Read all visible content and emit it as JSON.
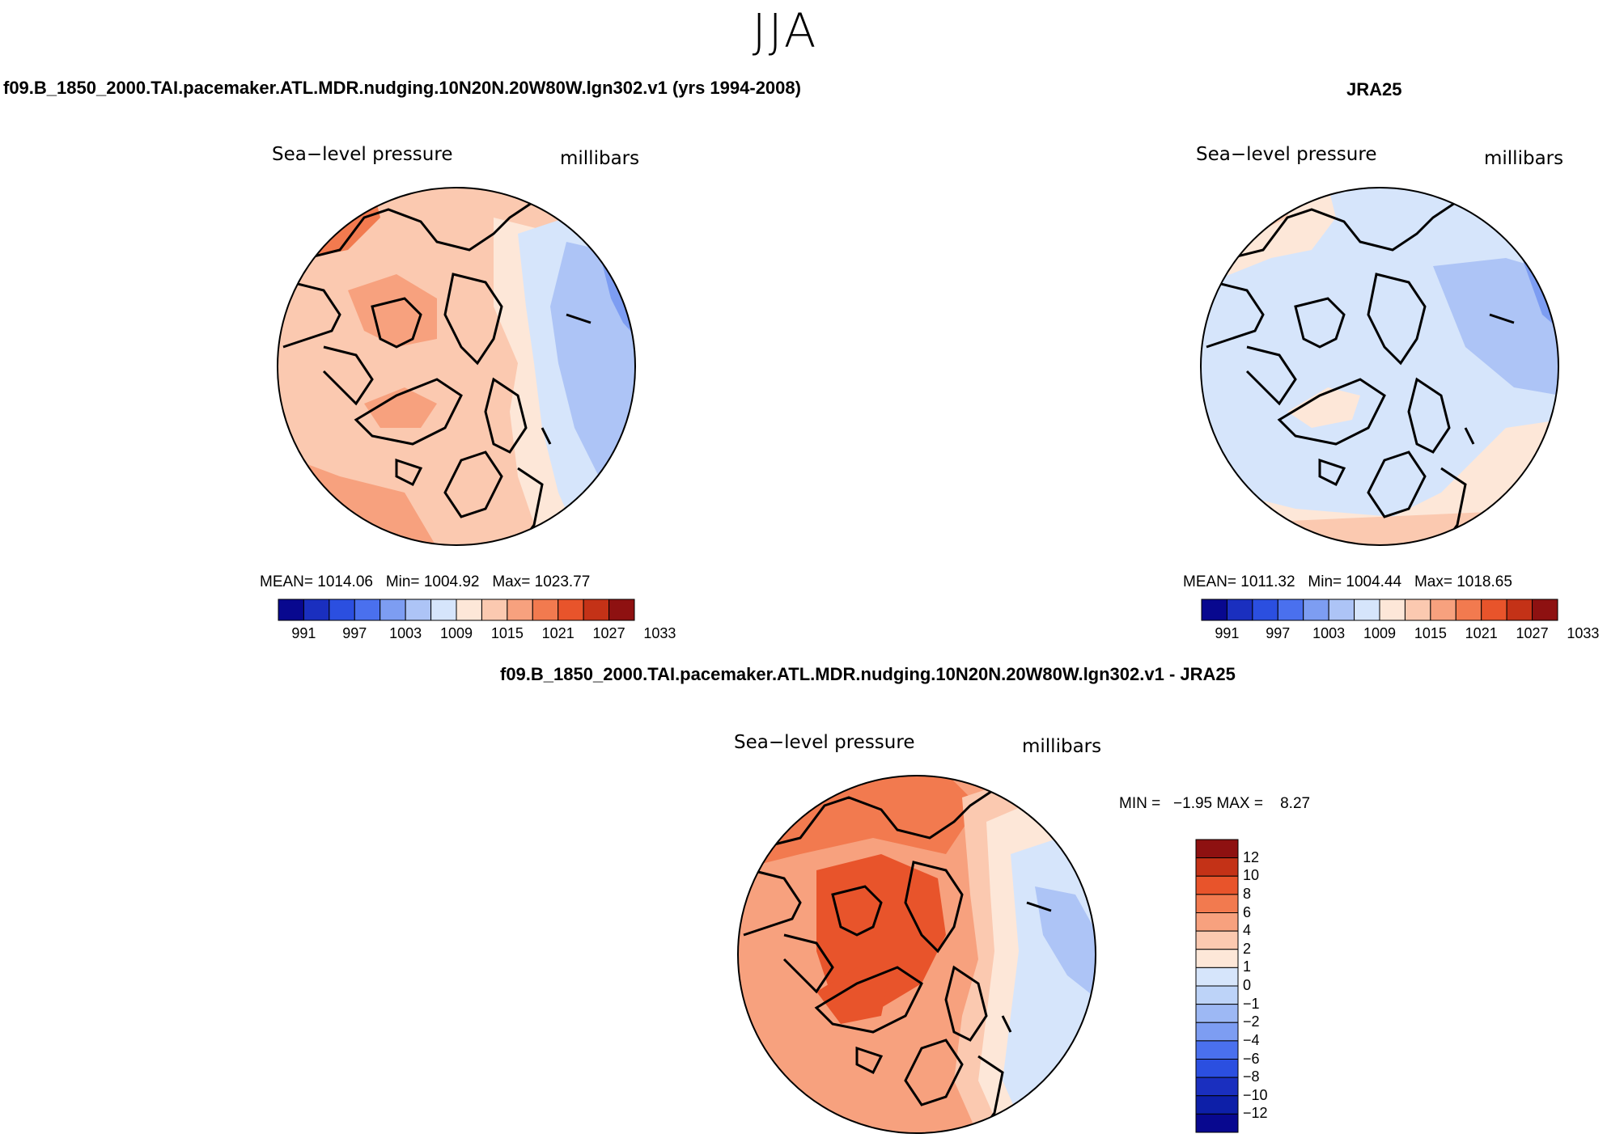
{
  "title": "JJA",
  "panels": {
    "model": {
      "case_title": "f09.B_1850_2000.TAI.pacemaker.ATL.MDR.nudging.10N20N.20W80W.lgn302.v1 (yrs 1994-2008)",
      "variable": "Sea−level pressure",
      "units": "millibars",
      "stats": {
        "mean_label": "MEAN=",
        "mean": "1014.06",
        "min_label": "Min=",
        "min": "1004.92",
        "max_label": "Max=",
        "max": "1023.77"
      },
      "colorbar_labels": [
        "991",
        "997",
        "1003",
        "1009",
        "1015",
        "1021",
        "1027",
        "1033"
      ]
    },
    "obs": {
      "case_title": "JRA25",
      "variable": "Sea−level pressure",
      "units": "millibars",
      "stats": {
        "mean_label": "MEAN=",
        "mean": "1011.32",
        "min_label": "Min=",
        "min": "1004.44",
        "max_label": "Max=",
        "max": "1018.65"
      },
      "colorbar_labels": [
        "991",
        "997",
        "1003",
        "1009",
        "1015",
        "1021",
        "1027",
        "1033"
      ]
    },
    "diff": {
      "case_title": "f09.B_1850_2000.TAI.pacemaker.ATL.MDR.nudging.10N20N.20W80W.lgn302.v1 - JRA25",
      "variable": "Sea−level pressure",
      "units": "millibars",
      "minmax": {
        "min_label": "MIN =",
        "min": "−1.95",
        "max_label": "MAX =",
        "max": "8.27"
      },
      "colorbar_labels": [
        "12",
        "10",
        "8",
        "6",
        "4",
        "2",
        "1",
        "0",
        "−1",
        "−2",
        "−4",
        "−6",
        "−8",
        "−10",
        "−12"
      ]
    }
  },
  "colors": {
    "abs_scale": [
      "#08088f",
      "#1a2fbf",
      "#2b4fe0",
      "#4a70ee",
      "#7d9df2",
      "#adc4f6",
      "#d6e5fb",
      "#fde7d8",
      "#fbc9b0",
      "#f7a17e",
      "#f27a4f",
      "#e8542b",
      "#c43217",
      "#8e1111"
    ],
    "diff_scale_top_to_bottom": [
      "#8e1111",
      "#c43217",
      "#e8542b",
      "#f27a4f",
      "#f7a17e",
      "#fbc9b0",
      "#fde7d8",
      "#d6e5fb",
      "#bdd3f8",
      "#9db8f4",
      "#7d9df2",
      "#4a70ee",
      "#2b4fe0",
      "#1a2fbf",
      "#0d1fa8",
      "#08088f"
    ]
  },
  "chart_data": [
    {
      "type": "heatmap",
      "title": "Sea−level pressure",
      "subtitle": "f09.B_1850_2000.TAI.pacemaker.ATL.MDR.nudging.10N20N.20W80W.lgn302.v1 (yrs 1994-2008)",
      "units": "millibars",
      "projection": "north polar stereographic",
      "mean": 1014.06,
      "min": 1004.92,
      "max": 1023.77,
      "contour_levels": [
        988,
        991,
        994,
        997,
        1000,
        1003,
        1006,
        1009,
        1012,
        1015,
        1018,
        1021,
        1024,
        1027,
        1030,
        1033,
        1036
      ]
    },
    {
      "type": "heatmap",
      "title": "Sea−level pressure",
      "subtitle": "JRA25",
      "units": "millibars",
      "projection": "north polar stereographic",
      "mean": 1011.32,
      "min": 1004.44,
      "max": 1018.65,
      "contour_levels": [
        988,
        991,
        994,
        997,
        1000,
        1003,
        1006,
        1009,
        1012,
        1015,
        1018,
        1021,
        1024,
        1027,
        1030,
        1033,
        1036
      ]
    },
    {
      "type": "heatmap",
      "title": "Sea−level pressure",
      "subtitle": "f09.B_1850_2000.TAI.pacemaker.ATL.MDR.nudging.10N20N.20W80W.lgn302.v1 - JRA25",
      "units": "millibars",
      "projection": "north polar stereographic",
      "min": -1.95,
      "max": 8.27,
      "contour_levels": [
        -12,
        -10,
        -8,
        -6,
        -4,
        -2,
        -1,
        0,
        1,
        2,
        4,
        6,
        8,
        10,
        12
      ]
    }
  ]
}
